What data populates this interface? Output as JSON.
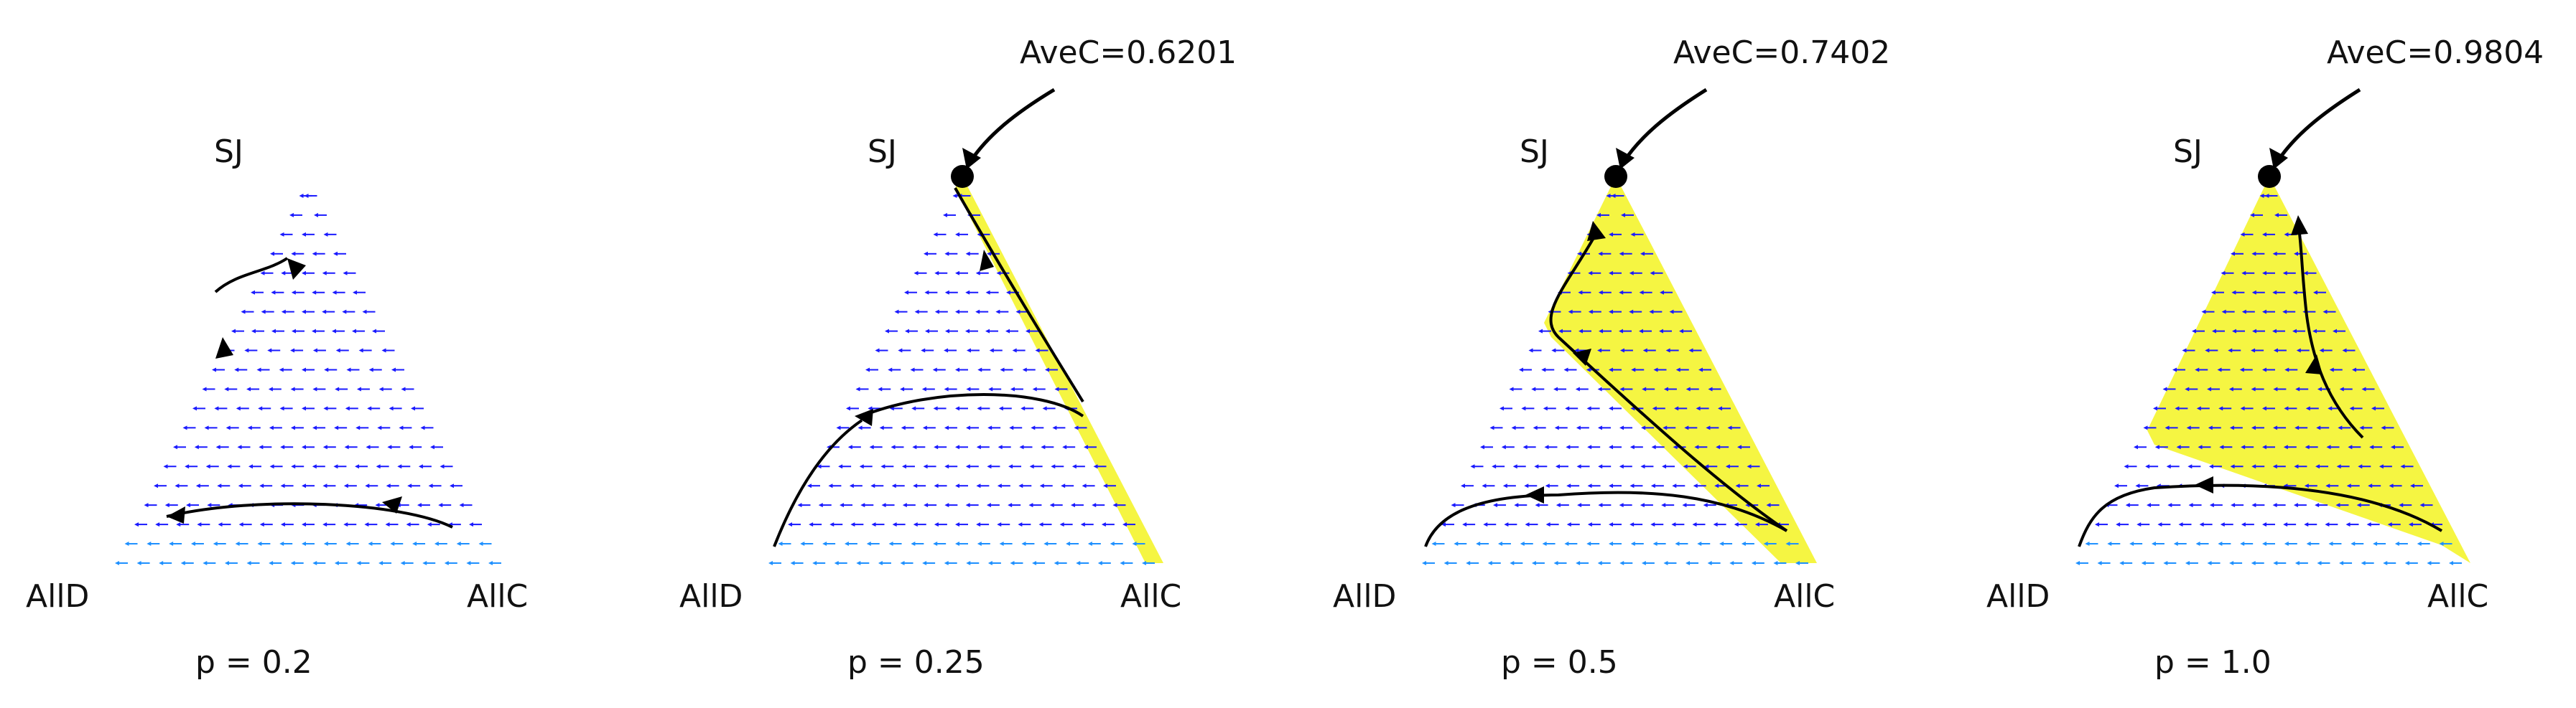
{
  "panels": [
    {
      "id": "p02",
      "vertex_top": "SJ",
      "vertex_left": "AllD",
      "vertex_right": "AllC",
      "param_label": "p = 0.2",
      "avec_label": "",
      "yellow_region": "none"
    },
    {
      "id": "p025",
      "vertex_top": "SJ",
      "vertex_left": "AllD",
      "vertex_right": "AllC",
      "param_label": "p = 0.25",
      "avec_label": "AveC=0.6201",
      "yellow_region": "thin-strip-right-edge"
    },
    {
      "id": "p05",
      "vertex_top": "SJ",
      "vertex_left": "AllD",
      "vertex_right": "AllC",
      "param_label": "p = 0.5",
      "avec_label": "AveC=0.7402",
      "yellow_region": "upper-right-wedge"
    },
    {
      "id": "p10",
      "vertex_top": "SJ",
      "vertex_left": "AllD",
      "vertex_right": "AllC",
      "param_label": "p = 1.0",
      "avec_label": "AveC=0.9804",
      "yellow_region": "upper-half"
    }
  ],
  "colors": {
    "arrows": "#1a1aff",
    "bottom_arrows": "#1e90ff",
    "basin": "#f5f542",
    "trajectory": "#000000"
  }
}
